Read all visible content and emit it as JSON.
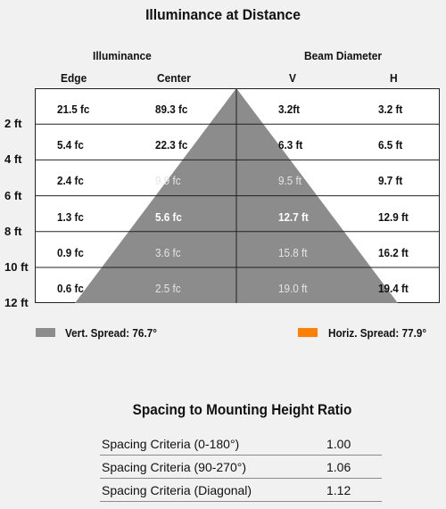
{
  "title": "Illuminance at Distance",
  "headers": {
    "illuminance": "Illuminance",
    "beam_diameter": "Beam Diameter",
    "edge": "Edge",
    "center": "Center",
    "v": "V",
    "h": "H"
  },
  "rows": [
    {
      "distance": "2 ft",
      "edge": "21.5 fc",
      "center": "89.3 fc",
      "v": "3.2ft",
      "h": "3.2 ft"
    },
    {
      "distance": "4 ft",
      "edge": "5.4 fc",
      "center": "22.3 fc",
      "v": "6.3 ft",
      "h": "6.5 ft"
    },
    {
      "distance": "6 ft",
      "edge": "2.4 fc",
      "center": "9.9 fc",
      "v": "9.5 ft",
      "h": "9.7 ft"
    },
    {
      "distance": "8 ft",
      "edge": "1.3 fc",
      "center": "5.6 fc",
      "v": "12.7 ft",
      "h": "12.9 ft"
    },
    {
      "distance": "10 ft",
      "edge": "0.9 fc",
      "center": "3.6 fc",
      "v": "15.8 ft",
      "h": "16.2 ft"
    },
    {
      "distance": "12 ft",
      "edge": "0.6 fc",
      "center": "2.5 fc",
      "v": "19.0 ft",
      "h": "19.4 ft"
    }
  ],
  "legend": {
    "vert": {
      "label": "Vert. Spread: 76.7°",
      "color": "#8c8c8c"
    },
    "horiz": {
      "label": "Horiz. Spread: 77.9°",
      "color": "#ff7f00"
    }
  },
  "spacing": {
    "title": "Spacing to Mounting Height Ratio",
    "rows": [
      {
        "label": "Spacing Criteria (0-180°)",
        "value": "1.00"
      },
      {
        "label": "Spacing Criteria (90-270°)",
        "value": "1.06"
      },
      {
        "label": "Spacing Criteria (Diagonal)",
        "value": "1.12"
      }
    ]
  },
  "colors": {
    "beam_cone": "#8c8c8c",
    "grid_line": "#222222"
  }
}
